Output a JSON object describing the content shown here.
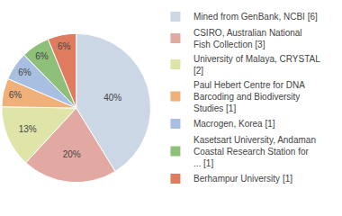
{
  "chart_data": {
    "type": "pie",
    "categories": [
      "Mined from GenBank, NCBI [6]",
      "CSIRO, Australian National Fish Collection [3]",
      "University of Malaya, CRYSTAL [2]",
      "Paul Hebert Centre for DNA Barcoding and Biodiversity Studies [1]",
      "Macrogen, Korea [1]",
      "Kasetsart University, Andaman Coastal Research Station for ... [1]",
      "Berhampur University [1]"
    ],
    "values": [
      40,
      20,
      13,
      6,
      6,
      6,
      6
    ],
    "value_labels": [
      "40%",
      "20%",
      "13%",
      "6%",
      "6%",
      "6%",
      "6%"
    ],
    "colors": [
      "#cbd7e4",
      "#e2a9a2",
      "#dfe4a9",
      "#efb07a",
      "#a9bfe2",
      "#8fc07a",
      "#df7c5f"
    ],
    "data_labels": true,
    "legend": "right"
  }
}
